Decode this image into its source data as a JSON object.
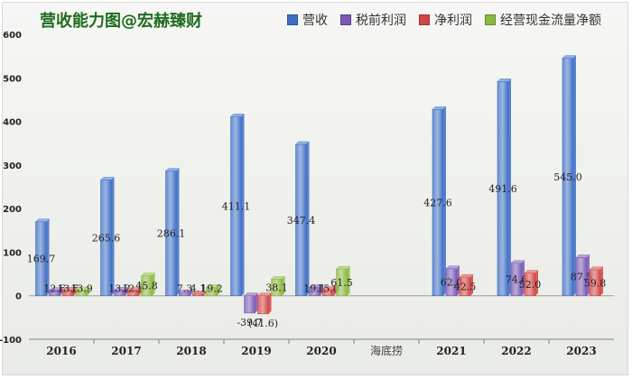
{
  "title": "营收能力图@宏赫臻财",
  "annotation": "海底捞",
  "chart_data": {
    "type": "bar",
    "title": "营收能力图@宏赫臻财",
    "categories": [
      "2016",
      "2017",
      "2018",
      "2019",
      "2020",
      "",
      "2021",
      "2022",
      "2023"
    ],
    "ylim": [
      -100,
      600
    ],
    "yticks": [
      600,
      500,
      400,
      300,
      200,
      100,
      0,
      -100
    ],
    "ytick_labels": [
      "600",
      "500",
      "400",
      "300",
      "200",
      "100",
      "0",
      "-100"
    ],
    "grid": false,
    "legend": "top",
    "series": [
      {
        "name": "营收",
        "color": "#3e6fc6",
        "values": [
          169.7,
          265.6,
          286.1,
          411.1,
          347.4,
          null,
          427.6,
          491.6,
          545.0
        ],
        "labels": [
          "169.7",
          "265.6",
          "286.1",
          "411.1",
          "347.4",
          "",
          "427.6",
          "491.6",
          "545.0"
        ]
      },
      {
        "name": "税前利润",
        "color": "#7a58b4",
        "values": [
          12.6,
          13.2,
          7.3,
          -39.7,
          19.1,
          null,
          62.0,
          74.6,
          87.5
        ],
        "labels": [
          "12.6",
          "13.2",
          "7.3",
          "-39.7",
          "19.1",
          "",
          "62.0",
          "74.6",
          "87.5"
        ]
      },
      {
        "name": "净利润",
        "color": "#d24545",
        "values": [
          13.5,
          12.3,
          4.1,
          -41.6,
          15.0,
          null,
          42.5,
          52.0,
          59.8
        ],
        "labels": [
          "13.5",
          "12.3",
          "4.1",
          "(41.6)",
          "15.0",
          "",
          "42.5",
          "52.0",
          "59.8"
        ]
      },
      {
        "name": "经营现金流量净额",
        "color": "#8bb83e",
        "values": [
          13.9,
          45.8,
          19.2,
          38.1,
          61.5,
          null,
          null,
          null,
          null
        ],
        "labels": [
          "13.9",
          "45.8",
          "19.2",
          "38.1",
          "61.5",
          "",
          "",
          "",
          ""
        ]
      }
    ]
  }
}
